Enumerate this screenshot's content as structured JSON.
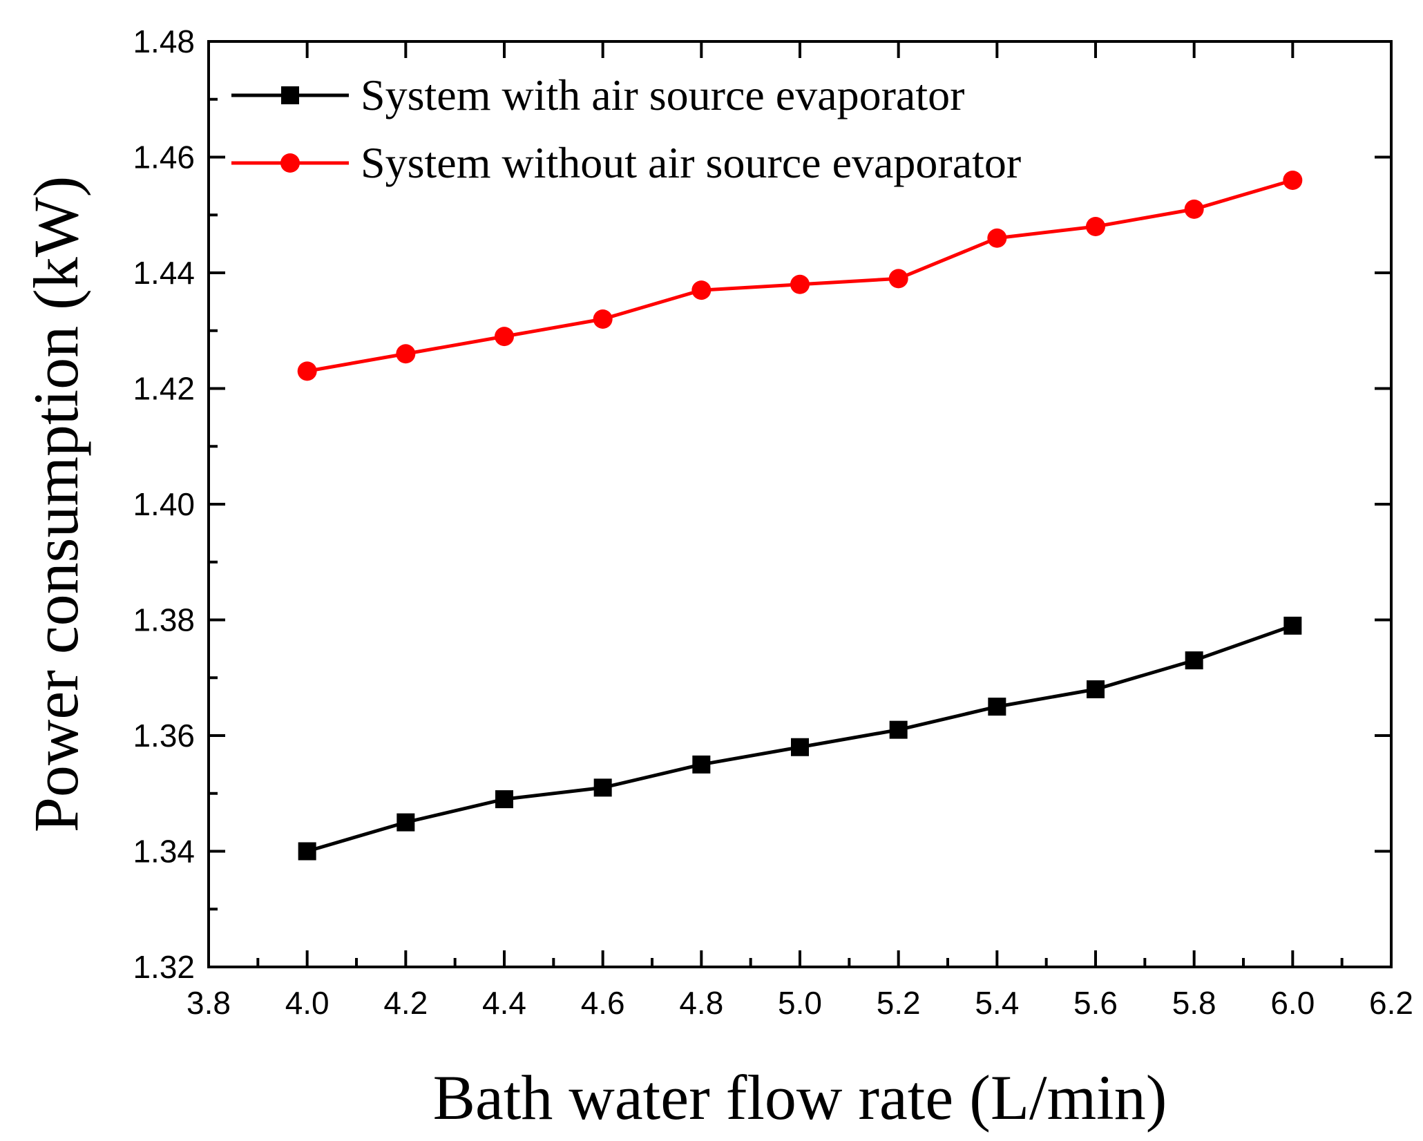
{
  "chart_data": {
    "type": "line",
    "title": "",
    "xlabel": "Bath water flow rate (L/min)",
    "ylabel": "Power consumption (kW)",
    "xlim": [
      3.8,
      6.2
    ],
    "ylim": [
      1.32,
      1.48
    ],
    "xticks": [
      "3.8",
      "4.0",
      "4.2",
      "4.4",
      "4.6",
      "4.8",
      "5.0",
      "5.2",
      "5.4",
      "5.6",
      "5.8",
      "6.0",
      "6.2"
    ],
    "yticks": [
      "1.32",
      "1.34",
      "1.36",
      "1.38",
      "1.40",
      "1.42",
      "1.44",
      "1.46",
      "1.48"
    ],
    "x": [
      4.0,
      4.2,
      4.4,
      4.6,
      4.8,
      5.0,
      5.2,
      5.4,
      5.6,
      5.8,
      6.0
    ],
    "legend_position": "top-left",
    "grid": false,
    "series": [
      {
        "name": "System with air source evaporator",
        "color": "#000000",
        "marker": "square",
        "values": [
          1.34,
          1.345,
          1.349,
          1.351,
          1.355,
          1.358,
          1.361,
          1.365,
          1.368,
          1.373,
          1.379
        ]
      },
      {
        "name": "System without air source evaporator",
        "color": "#ff0000",
        "marker": "circle",
        "values": [
          1.423,
          1.426,
          1.429,
          1.432,
          1.437,
          1.438,
          1.439,
          1.446,
          1.448,
          1.451,
          1.456
        ]
      }
    ]
  }
}
